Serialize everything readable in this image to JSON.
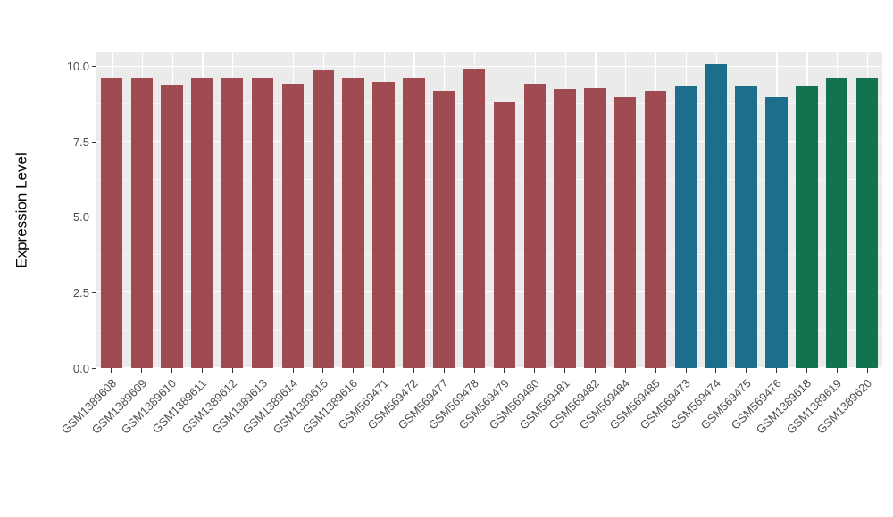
{
  "figure": {
    "background": "#FFFFFF",
    "panel_background": "#EBEBEB",
    "grid_major_color": "#FFFFFF",
    "grid_minor_color": "#F6F6F6",
    "axis_text_color": "#4D4D4D",
    "axis_title_color": "#000000"
  },
  "chart_data": {
    "type": "bar",
    "title": "",
    "xlabel": "",
    "ylabel": "Expression Level",
    "ylim": [
      0,
      10.5
    ],
    "yticks": [
      0,
      2.5,
      5,
      7.5,
      10
    ],
    "ytick_labels": [
      "0.0",
      "2.5",
      "5.0",
      "7.5",
      "10.0"
    ],
    "minor_ticks": [
      1.25,
      3.75,
      6.25,
      8.75
    ],
    "grid": true,
    "legend": "none",
    "group_colors": {
      "group1": "#A04A52",
      "group2": "#1C6E8C",
      "group3": "#12744E"
    },
    "categories": [
      "GSM1389608",
      "GSM1389609",
      "GSM1389610",
      "GSM1389611",
      "GSM1389612",
      "GSM1389613",
      "GSM1389614",
      "GSM1389615",
      "GSM1389616",
      "GSM569471",
      "GSM569472",
      "GSM569477",
      "GSM569478",
      "GSM569479",
      "GSM569480",
      "GSM569481",
      "GSM569482",
      "GSM569484",
      "GSM569485",
      "GSM569473",
      "GSM569474",
      "GSM569475",
      "GSM569476",
      "GSM1389618",
      "GSM1389619",
      "GSM1389620"
    ],
    "values": [
      9.65,
      9.65,
      9.4,
      9.65,
      9.65,
      9.6,
      9.45,
      9.9,
      9.6,
      9.5,
      9.65,
      9.2,
      9.95,
      8.85,
      9.45,
      9.25,
      9.3,
      9.0,
      9.2,
      9.35,
      10.1,
      9.35,
      9.0,
      9.35,
      9.6,
      9.65
    ],
    "bar_colors": [
      "#A04A52",
      "#A04A52",
      "#A04A52",
      "#A04A52",
      "#A04A52",
      "#A04A52",
      "#A04A52",
      "#A04A52",
      "#A04A52",
      "#A04A52",
      "#A04A52",
      "#A04A52",
      "#A04A52",
      "#A04A52",
      "#A04A52",
      "#A04A52",
      "#A04A52",
      "#A04A52",
      "#A04A52",
      "#1C6E8C",
      "#1C6E8C",
      "#1C6E8C",
      "#1C6E8C",
      "#12744E",
      "#12744E",
      "#12744E"
    ]
  }
}
